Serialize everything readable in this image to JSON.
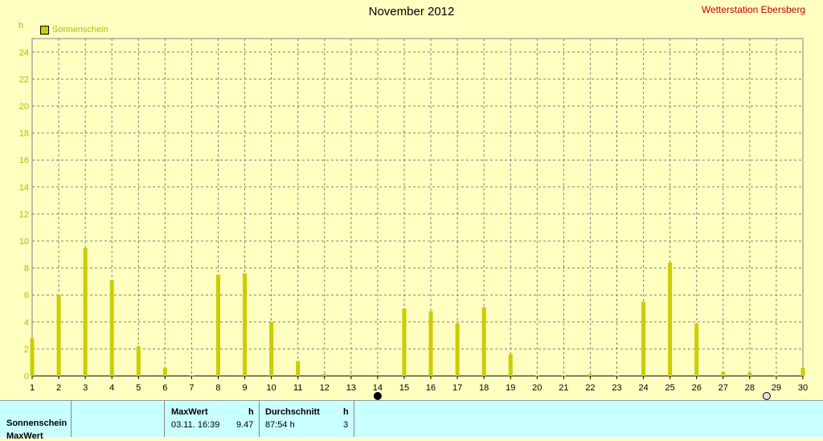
{
  "header": {
    "title": "November 2012",
    "station": "Wetterstation Ebersberg",
    "unit": "h"
  },
  "legend": {
    "label": "Sonnenschein",
    "color": "#cccc00"
  },
  "chart_data": {
    "type": "bar",
    "title": "November 2012",
    "ylabel": "h",
    "ylim": [
      0,
      25
    ],
    "yticks": [
      0,
      2,
      4,
      6,
      8,
      10,
      12,
      14,
      16,
      18,
      20,
      22,
      24
    ],
    "categories": [
      "1",
      "2",
      "3",
      "4",
      "5",
      "6",
      "7",
      "8",
      "9",
      "10",
      "11",
      "12",
      "13",
      "14",
      "15",
      "16",
      "17",
      "18",
      "19",
      "20",
      "21",
      "22",
      "23",
      "24",
      "25",
      "26",
      "27",
      "28",
      "29",
      "30"
    ],
    "series": [
      {
        "name": "Sonnenschein",
        "color": "#cccc00",
        "values": [
          2.8,
          6.0,
          9.47,
          7.1,
          2.2,
          0.6,
          0.05,
          7.5,
          7.6,
          4.0,
          1.1,
          0.15,
          0.1,
          0,
          5.0,
          4.8,
          3.9,
          5.1,
          1.6,
          0.05,
          0.05,
          0.15,
          0.05,
          5.5,
          8.4,
          3.9,
          0.3,
          0.25,
          0.05,
          0.6
        ]
      }
    ],
    "grid": true,
    "moon_markers": {
      "new_moon_day": "14",
      "full_moon_day": "29"
    }
  },
  "table": {
    "row_label": "Sonnenschein",
    "row_label_2": "MaxWert",
    "maxwert_header": "MaxWert",
    "maxwert_unit": "h",
    "maxwert_time": "03.11.  16:39",
    "maxwert_value": "9.47",
    "avg_header": "Durchschnitt",
    "avg_unit": "h",
    "avg_value": "87:54 h",
    "avg_count": "3"
  }
}
